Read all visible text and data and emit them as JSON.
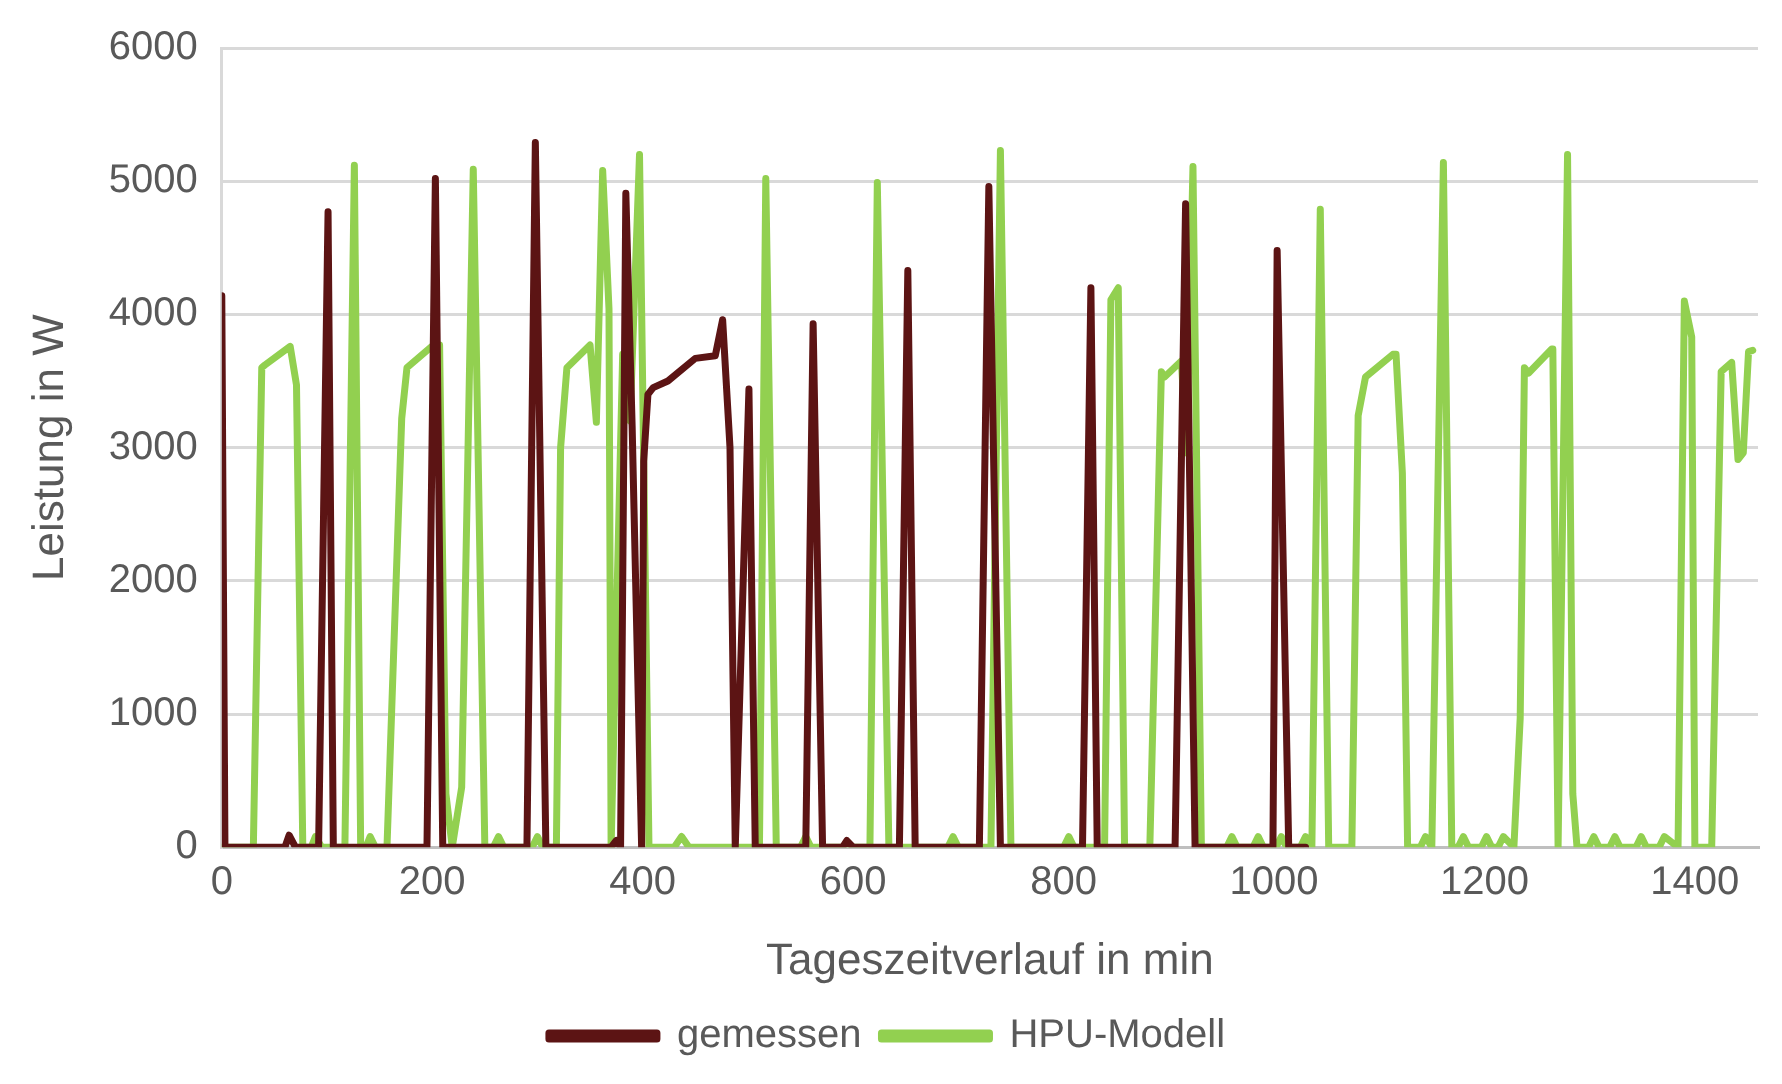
{
  "chart_data": {
    "type": "line",
    "xlabel": "Tageszeitverlauf in min",
    "ylabel": "Leistung in W",
    "xlim": [
      0,
      1460
    ],
    "xticks": [
      0,
      200,
      400,
      600,
      800,
      1000,
      1200,
      1400
    ],
    "ylim": [
      0,
      6000
    ],
    "yticks": [
      0,
      1000,
      2000,
      3000,
      4000,
      5000,
      6000
    ],
    "grid": "y",
    "legend": "bottom",
    "marker": "none",
    "line_style": "solid",
    "series": [
      {
        "name": "gemessen",
        "color": "#5c1414",
        "x": [
          0,
          3,
          60,
          64,
          70,
          92,
          101,
          106,
          195,
          203,
          210,
          290,
          298,
          308,
          370,
          375,
          379,
          384,
          390,
          399,
          401,
          405,
          410,
          424,
          450,
          469,
          476,
          483,
          488,
          501,
          507,
          555,
          562,
          571,
          590,
          594,
          600,
          644,
          652,
          659,
          720,
          729,
          740,
          818,
          826,
          832,
          906,
          916,
          925,
          999,
          1003,
          1014,
          1030
        ],
        "values": [
          4140,
          0,
          0,
          90,
          0,
          0,
          4770,
          0,
          0,
          5020,
          0,
          0,
          5290,
          0,
          0,
          50,
          0,
          4910,
          3160,
          0,
          2900,
          3400,
          3450,
          3500,
          3670,
          3690,
          3960,
          3000,
          0,
          3440,
          0,
          0,
          3930,
          0,
          0,
          50,
          0,
          0,
          4330,
          0,
          0,
          4960,
          0,
          0,
          4200,
          0,
          0,
          4830,
          0,
          0,
          4480,
          0,
          0
        ]
      },
      {
        "name": "HPU-Modell",
        "color": "#92d050",
        "x": [
          0,
          30,
          38,
          41,
          65,
          71,
          77,
          85,
          89,
          95,
          117,
          126,
          132,
          137,
          141,
          146,
          157,
          171,
          176,
          201,
          207,
          213,
          219,
          228,
          239,
          250,
          258,
          263,
          268,
          295,
          300,
          305,
          318,
          322,
          328,
          350,
          356,
          362,
          368,
          370,
          381,
          388,
          397,
          406,
          430,
          437,
          444,
          511,
          517,
          527,
          550,
          555,
          560,
          616,
          623,
          634,
          690,
          695,
          700,
          731,
          740,
          750,
          800,
          805,
          810,
          839,
          845,
          852,
          858,
          882,
          893,
          896,
          912,
          917,
          923,
          931,
          955,
          960,
          965,
          980,
          985,
          990,
          1002,
          1007,
          1012,
          1025,
          1030,
          1036,
          1044,
          1052,
          1074,
          1080,
          1087,
          1113,
          1116,
          1122,
          1127,
          1139,
          1144,
          1150,
          1161,
          1169,
          1175,
          1180,
          1185,
          1197,
          1202,
          1207,
          1213,
          1218,
          1228,
          1234,
          1238,
          1242,
          1264,
          1265,
          1270,
          1279,
          1284,
          1288,
          1299,
          1304,
          1309,
          1319,
          1324,
          1329,
          1344,
          1349,
          1354,
          1366,
          1371,
          1384,
          1390,
          1397,
          1400,
          1416,
          1425,
          1435,
          1441,
          1446,
          1451,
          1455
        ],
        "values": [
          0,
          0,
          3600,
          3620,
          3760,
          3470,
          0,
          0,
          80,
          0,
          0,
          5120,
          0,
          0,
          80,
          0,
          0,
          3220,
          3600,
          3770,
          3770,
          400,
          0,
          450,
          5090,
          0,
          0,
          80,
          0,
          0,
          80,
          0,
          0,
          3000,
          3600,
          3770,
          3190,
          5080,
          4040,
          0,
          3700,
          3200,
          5200,
          0,
          0,
          80,
          0,
          0,
          5020,
          0,
          0,
          80,
          0,
          0,
          4990,
          0,
          0,
          80,
          0,
          0,
          5230,
          0,
          0,
          80,
          0,
          0,
          4110,
          4200,
          0,
          0,
          3570,
          3530,
          3650,
          2960,
          5110,
          0,
          0,
          80,
          0,
          0,
          80,
          0,
          0,
          80,
          0,
          0,
          80,
          0,
          4790,
          0,
          0,
          3240,
          3530,
          3700,
          3700,
          2810,
          0,
          0,
          80,
          0,
          5140,
          0,
          0,
          80,
          0,
          0,
          80,
          0,
          0,
          80,
          0,
          970,
          3600,
          3560,
          3740,
          3740,
          0,
          5200,
          400,
          0,
          0,
          80,
          0,
          0,
          80,
          0,
          0,
          80,
          0,
          0,
          80,
          0,
          4100,
          3830,
          0,
          0,
          3570,
          3640,
          2910,
          2960,
          3720,
          3730
        ]
      }
    ]
  }
}
